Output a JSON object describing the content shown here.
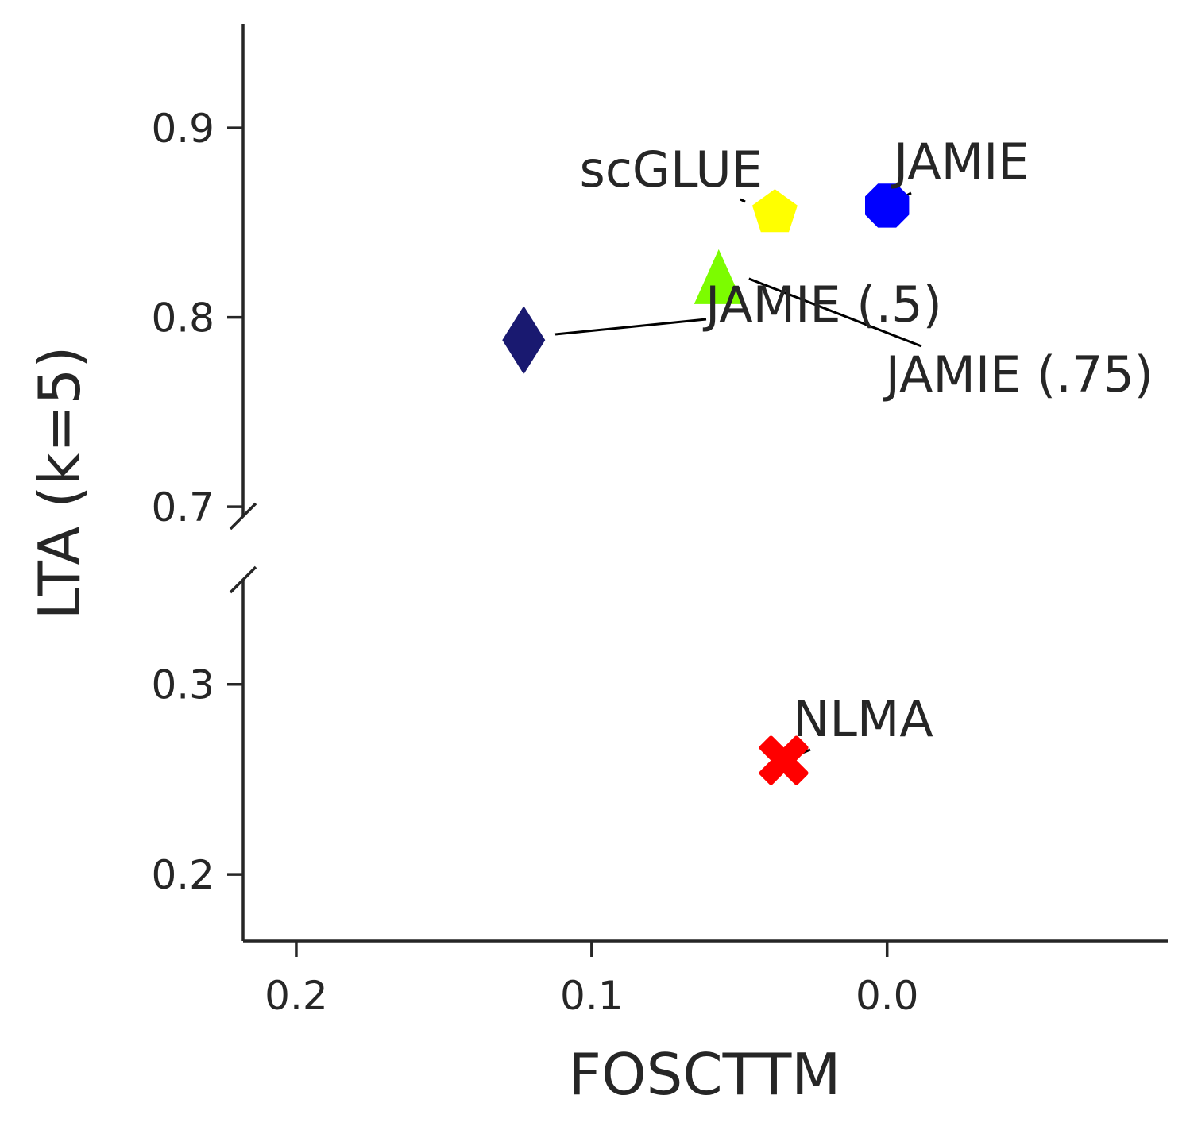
{
  "chart_data": {
    "type": "scatter",
    "title": "",
    "xlabel": "FOSCTTM",
    "ylabel": "LTA (k=5)",
    "x_inverted": true,
    "xlim": [
      0.218,
      -0.095
    ],
    "x_ticks": [
      0.2,
      0.1,
      0.0
    ],
    "x_tick_labels": [
      "0.2",
      "0.1",
      "0.0"
    ],
    "broken_y_axis": true,
    "panels": [
      {
        "name": "upper",
        "ylim": [
          0.695,
          0.955
        ],
        "y_ticks": [
          0.7,
          0.8,
          0.9
        ],
        "y_tick_labels": [
          "0.7",
          "0.8",
          "0.9"
        ]
      },
      {
        "name": "lower",
        "ylim": [
          0.165,
          0.355
        ],
        "y_ticks": [
          0.2,
          0.3
        ],
        "y_tick_labels": [
          "0.2",
          "0.3"
        ]
      }
    ],
    "grid": false,
    "points": [
      {
        "label": "JAMIE",
        "x": 0.0,
        "y": 0.859,
        "marker": "octagon",
        "color": "#0000ff",
        "panel": "upper"
      },
      {
        "label": "scGLUE",
        "x": 0.038,
        "y": 0.856,
        "marker": "pentagon",
        "color": "#ffff00",
        "panel": "upper"
      },
      {
        "label": "JAMIE (.75)",
        "x": 0.057,
        "y": 0.82,
        "marker": "triangle",
        "color": "#7cfc00",
        "panel": "upper"
      },
      {
        "label": "JAMIE (.5)",
        "x": 0.123,
        "y": 0.788,
        "marker": "thin-diamond",
        "color": "#191970",
        "panel": "upper"
      },
      {
        "label": "NLMA",
        "x": 0.035,
        "y": 0.26,
        "marker": "x-filled",
        "color": "#ff0000",
        "panel": "lower"
      }
    ]
  }
}
